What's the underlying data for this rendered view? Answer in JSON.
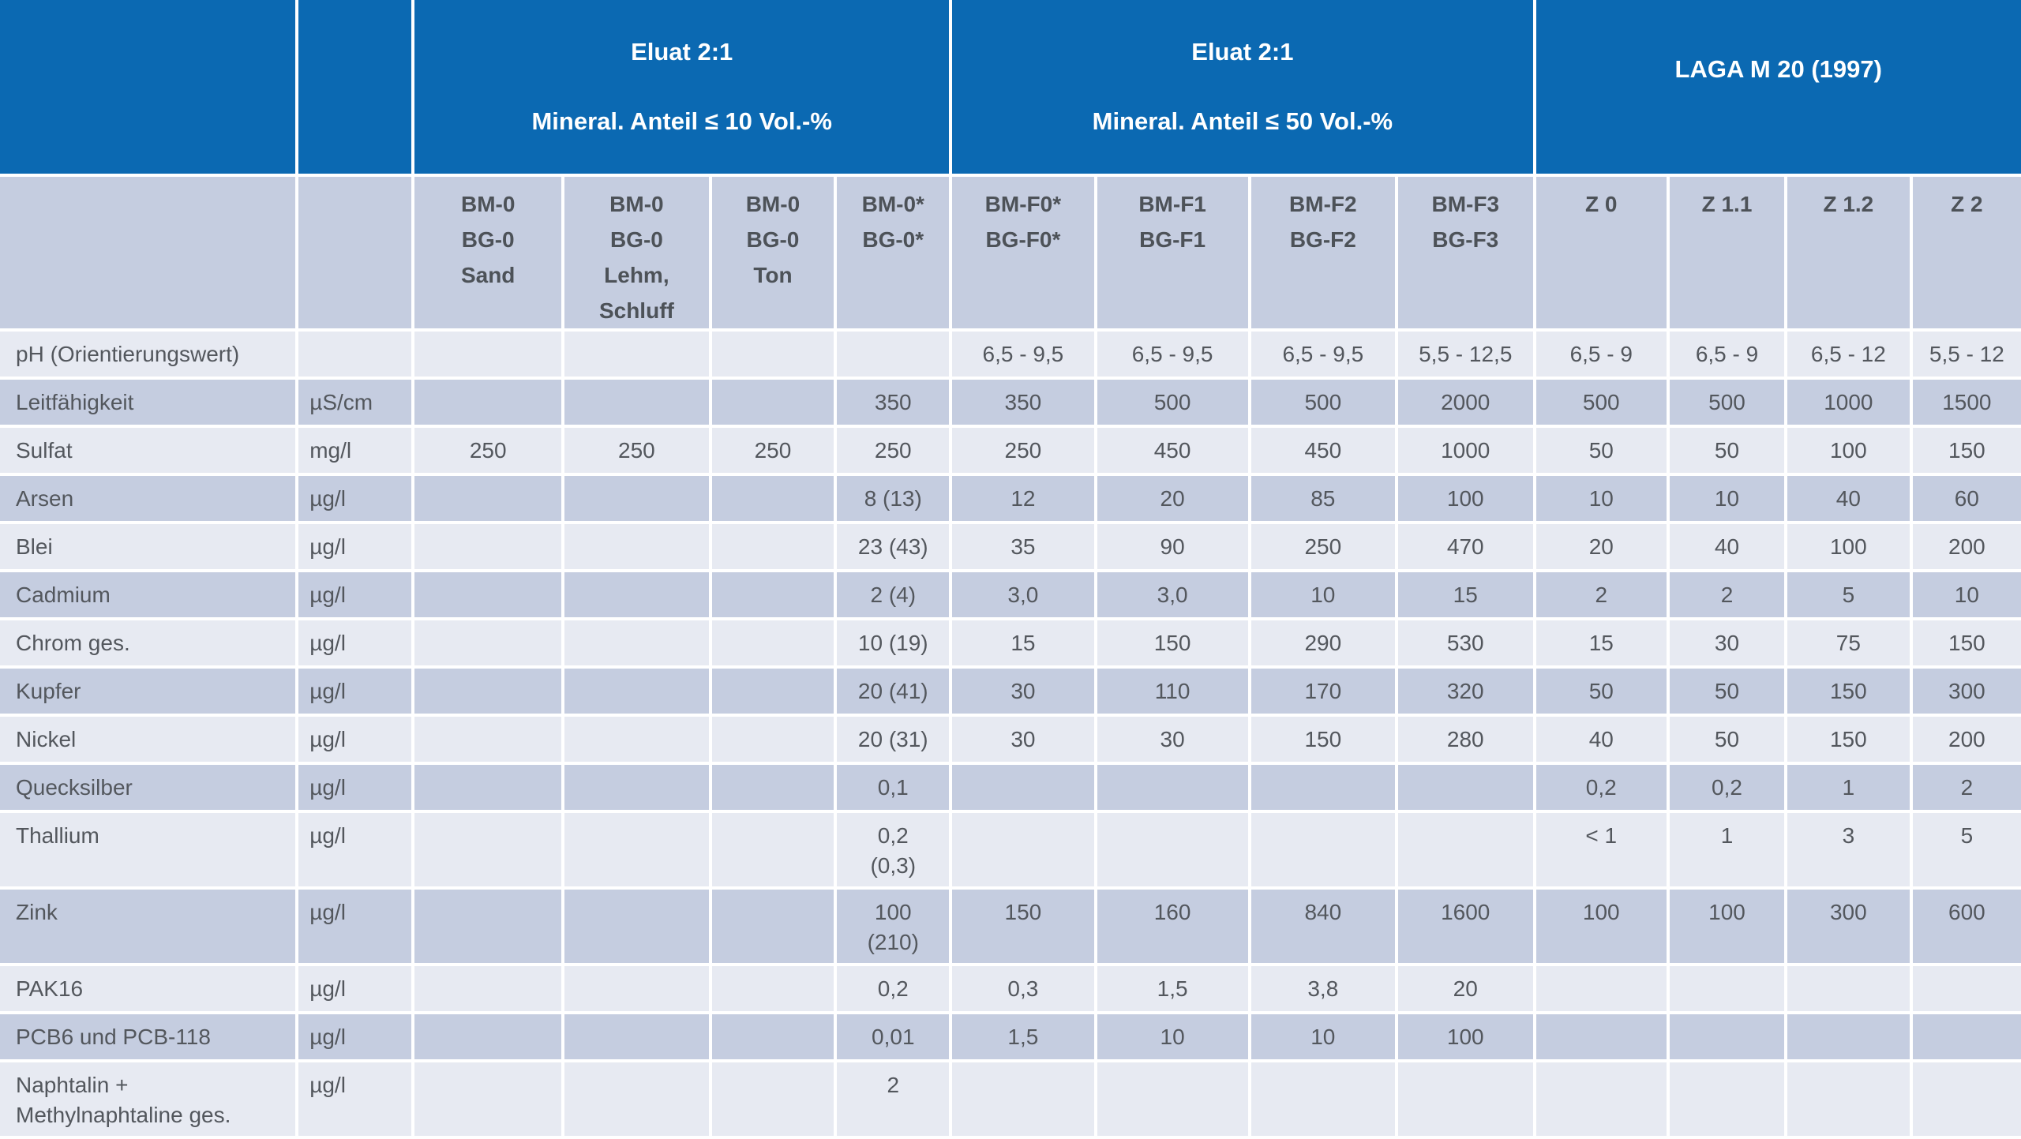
{
  "colors": {
    "header_blue": "#0b69b2",
    "header_text": "#ffffff",
    "row_dark": "#c5cde0",
    "row_light": "#e7eaf2",
    "subheader_text": "#4d5258",
    "body_text": "#53575d"
  },
  "table": {
    "header_groups": [
      {
        "line1": "Eluat 2:1",
        "line2": "Mineral. Anteil ≤ 10 Vol.-%"
      },
      {
        "line1": "Eluat 2:1",
        "line2": "Mineral. Anteil ≤ 50 Vol.-%"
      },
      {
        "line1": "LAGA M 20 (1997)",
        "line2": ""
      }
    ],
    "sub_headers": [
      "BM-0\nBG-0\nSand",
      "BM-0\nBG-0\nLehm,\nSchluff",
      "BM-0\nBG-0\nTon",
      "BM-0*\nBG-0*",
      "BM-F0*\nBG-F0*",
      "BM-F1\nBG-F1",
      "BM-F2\nBG-F2",
      "BM-F3\nBG-F3",
      "Z 0",
      "Z 1.1",
      "Z 1.2",
      "Z 2"
    ],
    "rows": [
      {
        "parameter": "pH (Orientierungswert)",
        "unit": "",
        "values": [
          "",
          "",
          "",
          "",
          "6,5 - 9,5",
          "6,5 - 9,5",
          "6,5 - 9,5",
          "5,5 - 12,5",
          "6,5 - 9",
          "6,5 - 9",
          "6,5 - 12",
          "5,5 - 12"
        ]
      },
      {
        "parameter": "Leitfähigkeit",
        "unit": "µS/cm",
        "values": [
          "",
          "",
          "",
          "350",
          "350",
          "500",
          "500",
          "2000",
          "500",
          "500",
          "1000",
          "1500"
        ]
      },
      {
        "parameter": "Sulfat",
        "unit": "mg/l",
        "values": [
          "250",
          "250",
          "250",
          "250",
          "250",
          "450",
          "450",
          "1000",
          "50",
          "50",
          "100",
          "150"
        ]
      },
      {
        "parameter": "Arsen",
        "unit": "µg/l",
        "values": [
          "",
          "",
          "",
          "8 (13)",
          "12",
          "20",
          "85",
          "100",
          "10",
          "10",
          "40",
          "60"
        ]
      },
      {
        "parameter": "Blei",
        "unit": "µg/l",
        "values": [
          "",
          "",
          "",
          "23 (43)",
          "35",
          "90",
          "250",
          "470",
          "20",
          "40",
          "100",
          "200"
        ]
      },
      {
        "parameter": "Cadmium",
        "unit": "µg/l",
        "values": [
          "",
          "",
          "",
          "2 (4)",
          "3,0",
          "3,0",
          "10",
          "15",
          "2",
          "2",
          "5",
          "10"
        ]
      },
      {
        "parameter": "Chrom ges.",
        "unit": "µg/l",
        "values": [
          "",
          "",
          "",
          "10 (19)",
          "15",
          "150",
          "290",
          "530",
          "15",
          "30",
          "75",
          "150"
        ]
      },
      {
        "parameter": "Kupfer",
        "unit": "µg/l",
        "values": [
          "",
          "",
          "",
          "20 (41)",
          "30",
          "110",
          "170",
          "320",
          "50",
          "50",
          "150",
          "300"
        ]
      },
      {
        "parameter": "Nickel",
        "unit": "µg/l",
        "values": [
          "",
          "",
          "",
          "20 (31)",
          "30",
          "30",
          "150",
          "280",
          "40",
          "50",
          "150",
          "200"
        ]
      },
      {
        "parameter": "Quecksilber",
        "unit": "µg/l",
        "values": [
          "",
          "",
          "",
          "0,1",
          "",
          "",
          "",
          "",
          "0,2",
          "0,2",
          "1",
          "2"
        ]
      },
      {
        "parameter": "Thallium",
        "unit": "µg/l",
        "values": [
          "",
          "",
          "",
          "0,2\n(0,3)",
          "",
          "",
          "",
          "",
          "< 1",
          "1",
          "3",
          "5"
        ]
      },
      {
        "parameter": "Zink",
        "unit": "µg/l",
        "values": [
          "",
          "",
          "",
          "100\n(210)",
          "150",
          "160",
          "840",
          "1600",
          "100",
          "100",
          "300",
          "600"
        ]
      },
      {
        "parameter": "PAK16",
        "unit": "µg/l",
        "values": [
          "",
          "",
          "",
          "0,2",
          "0,3",
          "1,5",
          "3,8",
          "20",
          "",
          "",
          "",
          ""
        ]
      },
      {
        "parameter": "PCB6 und PCB-118",
        "unit": "µg/l",
        "values": [
          "",
          "",
          "",
          "0,01",
          "1,5",
          "10",
          "10",
          "100",
          "",
          "",
          "",
          ""
        ]
      },
      {
        "parameter": "Naphtalin +\nMethylnaphtaline ges.",
        "unit": "µg/l",
        "values": [
          "",
          "",
          "",
          "2",
          "",
          "",
          "",
          "",
          "",
          "",
          "",
          ""
        ]
      }
    ]
  }
}
